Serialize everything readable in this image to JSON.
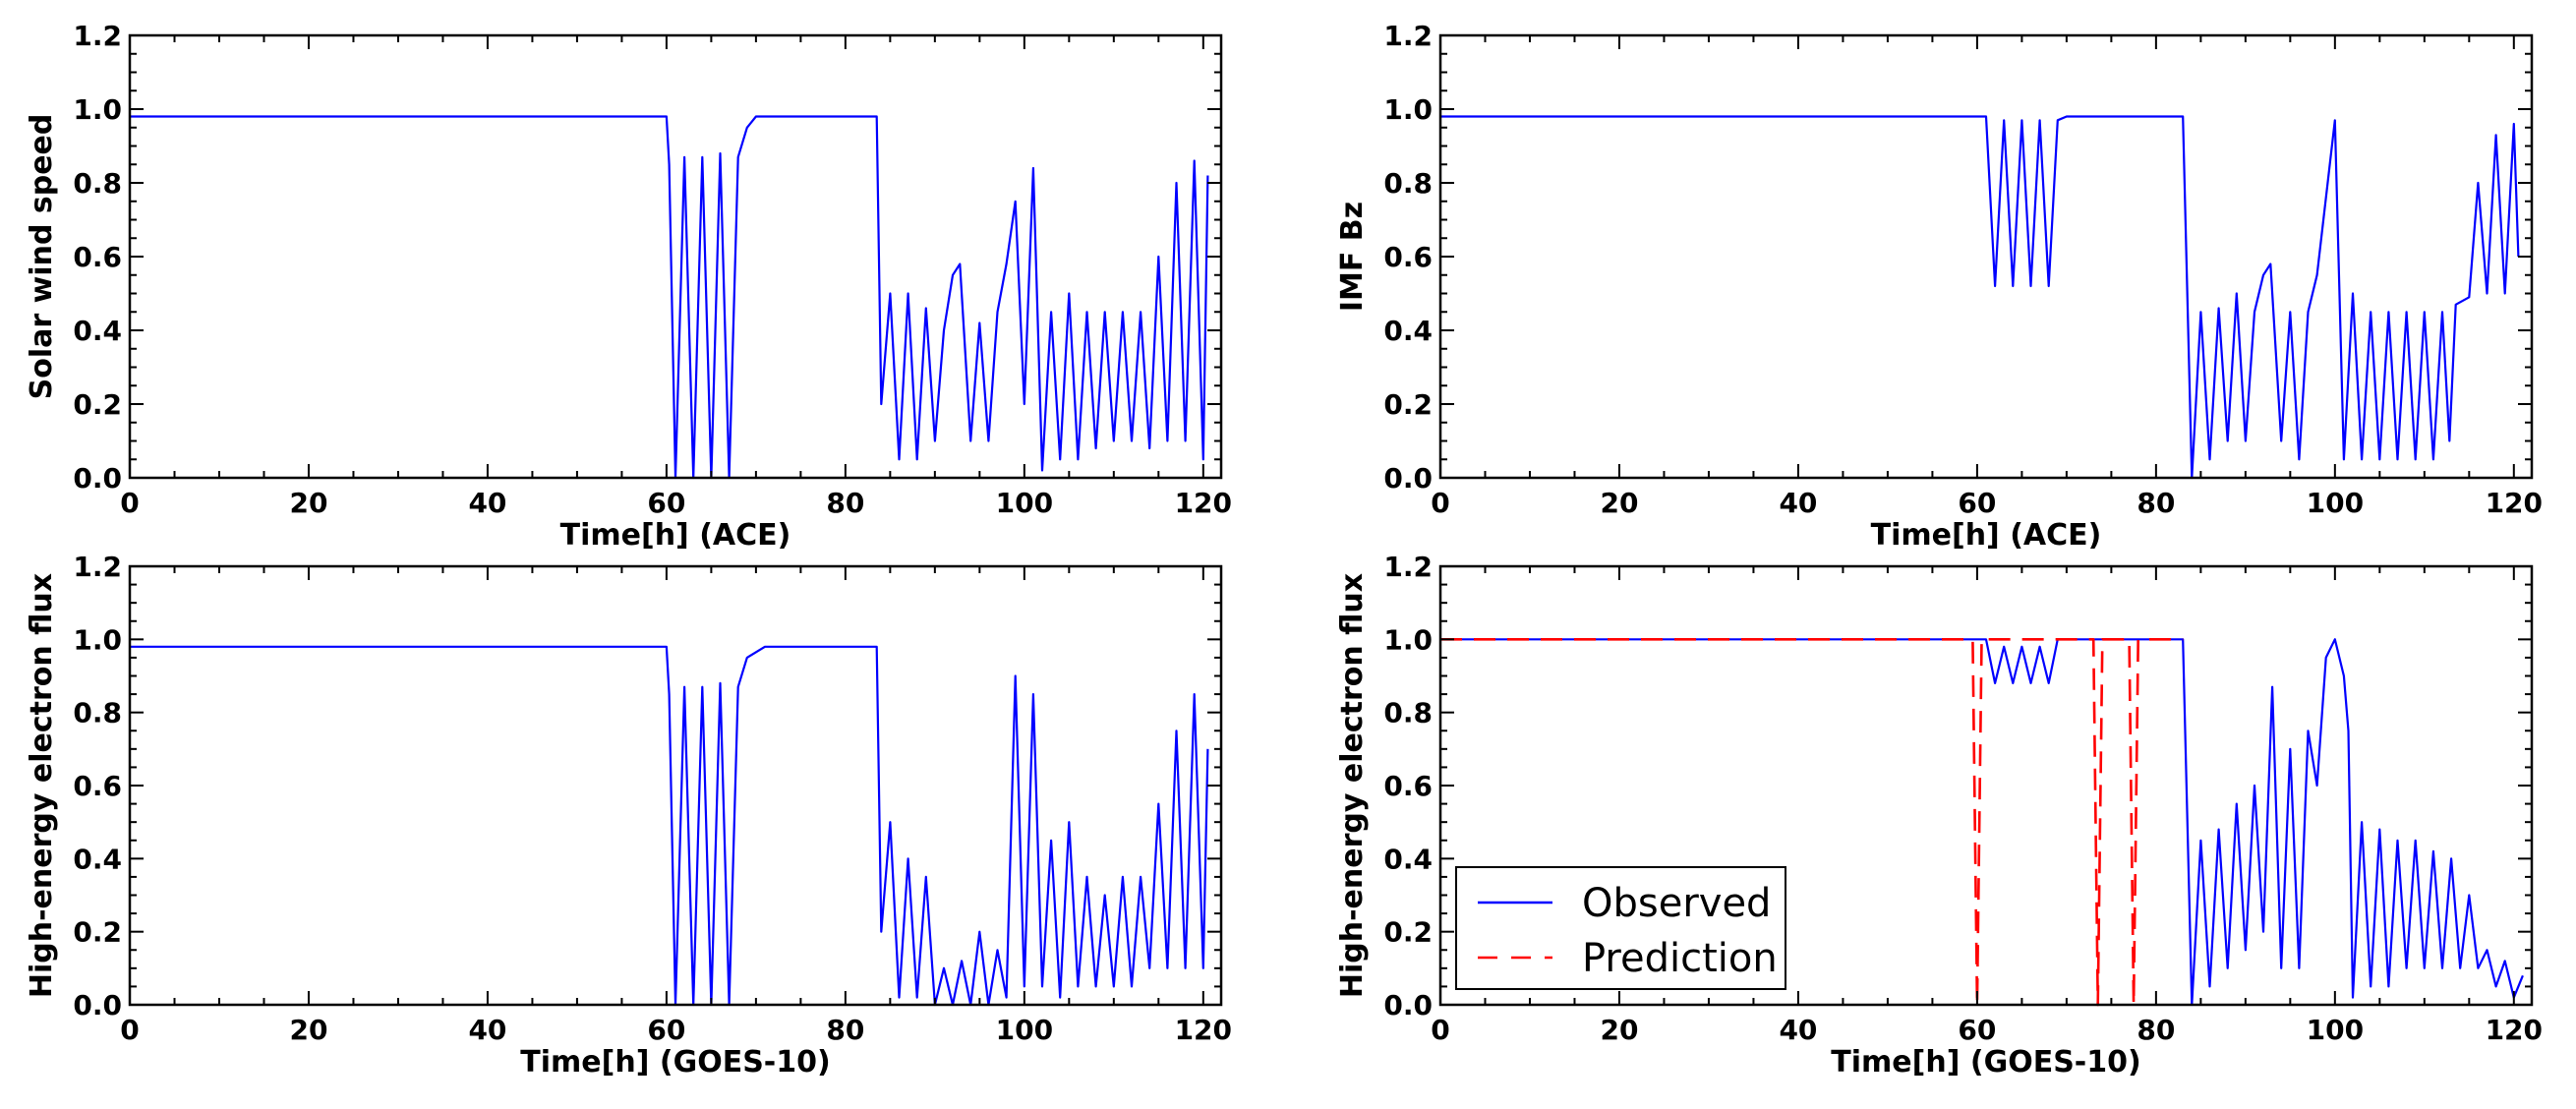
{
  "chart_data": [
    {
      "type": "line",
      "panel": "top-left",
      "xlabel": "Time[h] (ACE)",
      "ylabel": "Solar wind speed",
      "xlim": [
        0,
        122
      ],
      "ylim": [
        0.0,
        1.2
      ],
      "xticks": [
        "0",
        "20",
        "40",
        "60",
        "80",
        "100",
        "120"
      ],
      "yticks": [
        "0.0",
        "0.2",
        "0.4",
        "0.6",
        "0.8",
        "1.0",
        "1.2"
      ],
      "legend": null,
      "series": [
        {
          "name": "Observed",
          "color": "#0000ff",
          "style": "solid",
          "points": [
            [
              0,
              0.98
            ],
            [
              60,
              0.98
            ],
            [
              60.3,
              0.85
            ],
            [
              61,
              0
            ],
            [
              62,
              0.87
            ],
            [
              63,
              0
            ],
            [
              64,
              0.87
            ],
            [
              65,
              0
            ],
            [
              66,
              0.88
            ],
            [
              67,
              0
            ],
            [
              68,
              0.87
            ],
            [
              69,
              0.95
            ],
            [
              70,
              0.98
            ],
            [
              83.5,
              0.98
            ],
            [
              84,
              0.2
            ],
            [
              85,
              0.5
            ],
            [
              86,
              0.05
            ],
            [
              87,
              0.5
            ],
            [
              88,
              0.05
            ],
            [
              89,
              0.46
            ],
            [
              90,
              0.1
            ],
            [
              91,
              0.4
            ],
            [
              92,
              0.55
            ],
            [
              92.8,
              0.58
            ],
            [
              94,
              0.1
            ],
            [
              95,
              0.42
            ],
            [
              96,
              0.1
            ],
            [
              97,
              0.45
            ],
            [
              98,
              0.58
            ],
            [
              99,
              0.75
            ],
            [
              100,
              0.2
            ],
            [
              101,
              0.84
            ],
            [
              102,
              0.02
            ],
            [
              103,
              0.45
            ],
            [
              104,
              0.05
            ],
            [
              105,
              0.5
            ],
            [
              106,
              0.05
            ],
            [
              107,
              0.45
            ],
            [
              108,
              0.08
            ],
            [
              109,
              0.45
            ],
            [
              110,
              0.1
            ],
            [
              111,
              0.45
            ],
            [
              112,
              0.1
            ],
            [
              113,
              0.45
            ],
            [
              114,
              0.08
            ],
            [
              115,
              0.6
            ],
            [
              116,
              0.1
            ],
            [
              117,
              0.8
            ],
            [
              118,
              0.1
            ],
            [
              119,
              0.86
            ],
            [
              120,
              0.05
            ],
            [
              120.5,
              0.82
            ]
          ]
        }
      ]
    },
    {
      "type": "line",
      "panel": "top-right",
      "xlabel": "Time[h] (ACE)",
      "ylabel": "IMF Bz",
      "xlim": [
        0,
        122
      ],
      "ylim": [
        0.0,
        1.2
      ],
      "xticks": [
        "0",
        "20",
        "40",
        "60",
        "80",
        "100",
        "120"
      ],
      "yticks": [
        "0.0",
        "0.2",
        "0.4",
        "0.6",
        "0.8",
        "1.0",
        "1.2"
      ],
      "legend": null,
      "series": [
        {
          "name": "Observed",
          "color": "#0000ff",
          "style": "solid",
          "points": [
            [
              0,
              0.98
            ],
            [
              61,
              0.98
            ],
            [
              62,
              0.52
            ],
            [
              63,
              0.97
            ],
            [
              64,
              0.52
            ],
            [
              65,
              0.97
            ],
            [
              66,
              0.52
            ],
            [
              67,
              0.97
            ],
            [
              68,
              0.52
            ],
            [
              69,
              0.97
            ],
            [
              70,
              0.98
            ],
            [
              83,
              0.98
            ],
            [
              84,
              0.0
            ],
            [
              85,
              0.45
            ],
            [
              86,
              0.05
            ],
            [
              87,
              0.46
            ],
            [
              88,
              0.1
            ],
            [
              89,
              0.5
            ],
            [
              90,
              0.1
            ],
            [
              91,
              0.45
            ],
            [
              92,
              0.55
            ],
            [
              92.8,
              0.58
            ],
            [
              94,
              0.1
            ],
            [
              95,
              0.45
            ],
            [
              96,
              0.05
            ],
            [
              97,
              0.45
            ],
            [
              98,
              0.55
            ],
            [
              100,
              0.97
            ],
            [
              101,
              0.05
            ],
            [
              102,
              0.5
            ],
            [
              103,
              0.05
            ],
            [
              104,
              0.45
            ],
            [
              105,
              0.05
            ],
            [
              106,
              0.45
            ],
            [
              107,
              0.05
            ],
            [
              108,
              0.45
            ],
            [
              109,
              0.05
            ],
            [
              110,
              0.45
            ],
            [
              111,
              0.05
            ],
            [
              112,
              0.45
            ],
            [
              112.8,
              0.1
            ],
            [
              113.5,
              0.47
            ],
            [
              115,
              0.49
            ],
            [
              116,
              0.8
            ],
            [
              117,
              0.5
            ],
            [
              118,
              0.93
            ],
            [
              119,
              0.5
            ],
            [
              120,
              0.96
            ],
            [
              120.5,
              0.6
            ]
          ]
        }
      ]
    },
    {
      "type": "line",
      "panel": "bottom-left",
      "xlabel": "Time[h] (GOES-10)",
      "ylabel": "High-energy electron flux",
      "xlim": [
        0,
        122
      ],
      "ylim": [
        0.0,
        1.2
      ],
      "xticks": [
        "0",
        "20",
        "40",
        "60",
        "80",
        "100",
        "120"
      ],
      "yticks": [
        "0.0",
        "0.2",
        "0.4",
        "0.6",
        "0.8",
        "1.0",
        "1.2"
      ],
      "legend": null,
      "series": [
        {
          "name": "Observed",
          "color": "#0000ff",
          "style": "solid",
          "points": [
            [
              0,
              0.98
            ],
            [
              60,
              0.98
            ],
            [
              60.3,
              0.85
            ],
            [
              61,
              0
            ],
            [
              62,
              0.87
            ],
            [
              63,
              0
            ],
            [
              64,
              0.87
            ],
            [
              65,
              0
            ],
            [
              66,
              0.88
            ],
            [
              67,
              0
            ],
            [
              68,
              0.87
            ],
            [
              69,
              0.95
            ],
            [
              71,
              0.98
            ],
            [
              83.5,
              0.98
            ],
            [
              84,
              0.2
            ],
            [
              85,
              0.5
            ],
            [
              86,
              0.02
            ],
            [
              87,
              0.4
            ],
            [
              88,
              0.02
            ],
            [
              89,
              0.35
            ],
            [
              90,
              0.0
            ],
            [
              91,
              0.1
            ],
            [
              92,
              0.0
            ],
            [
              93,
              0.12
            ],
            [
              94,
              0.0
            ],
            [
              95,
              0.2
            ],
            [
              96,
              0.0
            ],
            [
              97,
              0.15
            ],
            [
              98,
              0.02
            ],
            [
              99,
              0.9
            ],
            [
              100,
              0.05
            ],
            [
              101,
              0.85
            ],
            [
              102,
              0.05
            ],
            [
              103,
              0.45
            ],
            [
              104,
              0.02
            ],
            [
              105,
              0.5
            ],
            [
              106,
              0.05
            ],
            [
              107,
              0.35
            ],
            [
              108,
              0.05
            ],
            [
              109,
              0.3
            ],
            [
              110,
              0.05
            ],
            [
              111,
              0.35
            ],
            [
              112,
              0.05
            ],
            [
              113,
              0.35
            ],
            [
              114,
              0.1
            ],
            [
              115,
              0.55
            ],
            [
              116,
              0.1
            ],
            [
              117,
              0.75
            ],
            [
              118,
              0.1
            ],
            [
              119,
              0.85
            ],
            [
              120,
              0.1
            ],
            [
              120.5,
              0.7
            ]
          ]
        }
      ]
    },
    {
      "type": "line",
      "panel": "bottom-right",
      "xlabel": "Time[h] (GOES-10)",
      "ylabel": "High-energy electron flux",
      "xlim": [
        0,
        122
      ],
      "ylim": [
        0.0,
        1.2
      ],
      "xticks": [
        "0",
        "20",
        "40",
        "60",
        "80",
        "100",
        "120"
      ],
      "yticks": [
        "0.0",
        "0.2",
        "0.4",
        "0.6",
        "0.8",
        "1.0",
        "1.2"
      ],
      "legend": {
        "position": "lower-left",
        "entries": [
          "Observed",
          "Prediction"
        ]
      },
      "series": [
        {
          "name": "Observed",
          "color": "#0000ff",
          "style": "solid",
          "points": [
            [
              0,
              1.0
            ],
            [
              61,
              1.0
            ],
            [
              62,
              0.88
            ],
            [
              63,
              0.98
            ],
            [
              64,
              0.88
            ],
            [
              65,
              0.98
            ],
            [
              66,
              0.88
            ],
            [
              67,
              0.98
            ],
            [
              68,
              0.88
            ],
            [
              69,
              1.0
            ],
            [
              83,
              1.0
            ],
            [
              84,
              0.0
            ],
            [
              85,
              0.45
            ],
            [
              86,
              0.05
            ],
            [
              87,
              0.48
            ],
            [
              88,
              0.1
            ],
            [
              89,
              0.55
            ],
            [
              90,
              0.15
            ],
            [
              91,
              0.6
            ],
            [
              92,
              0.2
            ],
            [
              93,
              0.87
            ],
            [
              94,
              0.1
            ],
            [
              95,
              0.7
            ],
            [
              96,
              0.1
            ],
            [
              97,
              0.75
            ],
            [
              98,
              0.6
            ],
            [
              99,
              0.95
            ],
            [
              100,
              1.0
            ],
            [
              101,
              0.9
            ],
            [
              101.5,
              0.75
            ],
            [
              102,
              0.02
            ],
            [
              103,
              0.5
            ],
            [
              104,
              0.05
            ],
            [
              105,
              0.48
            ],
            [
              106,
              0.05
            ],
            [
              107,
              0.45
            ],
            [
              108,
              0.1
            ],
            [
              109,
              0.45
            ],
            [
              110,
              0.1
            ],
            [
              111,
              0.42
            ],
            [
              112,
              0.1
            ],
            [
              113,
              0.4
            ],
            [
              114,
              0.1
            ],
            [
              115,
              0.3
            ],
            [
              116,
              0.1
            ],
            [
              117,
              0.15
            ],
            [
              118,
              0.05
            ],
            [
              119,
              0.12
            ],
            [
              120,
              0.02
            ],
            [
              121,
              0.08
            ]
          ]
        },
        {
          "name": "Prediction",
          "color": "#ff0000",
          "style": "dashed",
          "points": [
            [
              0,
              1.0
            ],
            [
              59.5,
              1.0
            ],
            [
              60,
              0.0
            ],
            [
              60.5,
              1.0
            ],
            [
              73,
              1.0
            ],
            [
              73.5,
              0.0
            ],
            [
              74,
              1.0
            ],
            [
              77,
              1.0
            ],
            [
              77.5,
              0.0
            ],
            [
              78,
              1.0
            ],
            [
              83,
              1.0
            ]
          ]
        }
      ]
    }
  ]
}
